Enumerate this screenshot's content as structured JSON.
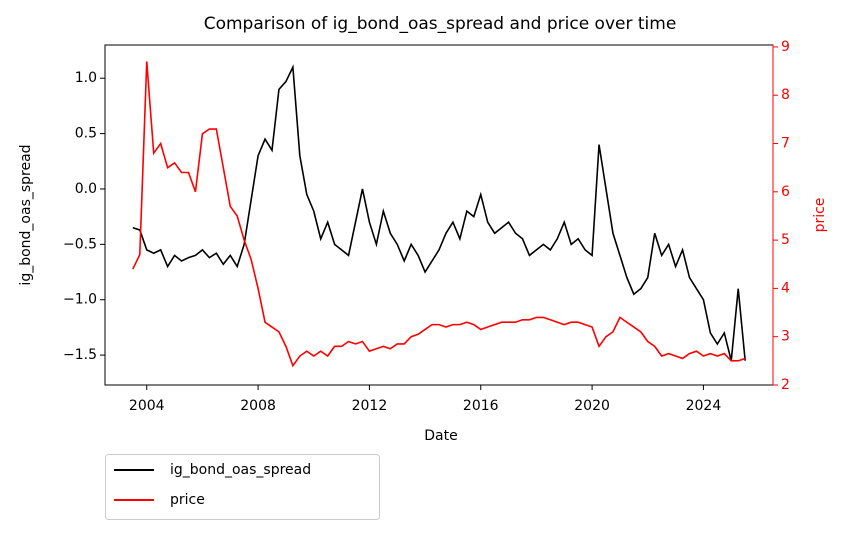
{
  "chart_data": {
    "type": "line",
    "title": "Comparison of ig_bond_oas_spread and price over time",
    "xlabel": "Date",
    "ylabel": "ig_bond_oas_spread",
    "y2label": "price",
    "x": [
      2003.5,
      2003.75,
      2004,
      2004.25,
      2004.5,
      2004.75,
      2005,
      2005.25,
      2005.5,
      2005.75,
      2006,
      2006.25,
      2006.5,
      2006.75,
      2007,
      2007.25,
      2007.5,
      2007.75,
      2008,
      2008.25,
      2008.5,
      2008.75,
      2009,
      2009.25,
      2009.5,
      2009.75,
      2010,
      2010.25,
      2010.5,
      2010.75,
      2011,
      2011.25,
      2011.5,
      2011.75,
      2012,
      2012.25,
      2012.5,
      2012.75,
      2013,
      2013.25,
      2013.5,
      2013.75,
      2014,
      2014.25,
      2014.5,
      2014.75,
      2015,
      2015.25,
      2015.5,
      2015.75,
      2016,
      2016.25,
      2016.5,
      2016.75,
      2017,
      2017.25,
      2017.5,
      2017.75,
      2018,
      2018.25,
      2018.5,
      2018.75,
      2019,
      2019.25,
      2019.5,
      2019.75,
      2020,
      2020.25,
      2020.5,
      2020.75,
      2021,
      2021.25,
      2021.5,
      2021.75,
      2022,
      2022.25,
      2022.5,
      2022.75,
      2023,
      2023.25,
      2023.5,
      2023.75,
      2024,
      2024.25,
      2024.5,
      2024.75,
      2025,
      2025.25,
      2025.5
    ],
    "series": [
      {
        "name": "ig_bond_oas_spread",
        "color": "#000000",
        "axis": "y",
        "values": [
          -0.35,
          -0.37,
          -0.55,
          -0.58,
          -0.55,
          -0.7,
          -0.6,
          -0.65,
          -0.62,
          -0.6,
          -0.55,
          -0.62,
          -0.58,
          -0.68,
          -0.6,
          -0.7,
          -0.5,
          -0.1,
          0.3,
          0.45,
          0.35,
          0.9,
          0.97,
          1.1,
          0.3,
          -0.05,
          -0.2,
          -0.45,
          -0.3,
          -0.5,
          -0.55,
          -0.6,
          -0.3,
          0.0,
          -0.3,
          -0.5,
          -0.2,
          -0.4,
          -0.5,
          -0.65,
          -0.5,
          -0.6,
          -0.75,
          -0.65,
          -0.55,
          -0.4,
          -0.3,
          -0.45,
          -0.2,
          -0.25,
          -0.05,
          -0.3,
          -0.4,
          -0.35,
          -0.3,
          -0.4,
          -0.45,
          -0.6,
          -0.55,
          -0.5,
          -0.55,
          -0.45,
          -0.3,
          -0.5,
          -0.45,
          -0.55,
          -0.6,
          0.4,
          0.0,
          -0.4,
          -0.6,
          -0.8,
          -0.95,
          -0.9,
          -0.8,
          -0.4,
          -0.6,
          -0.5,
          -0.7,
          -0.55,
          -0.8,
          -0.9,
          -1.0,
          -1.3,
          -1.4,
          -1.3,
          -1.55,
          -0.9,
          -1.55
        ]
      },
      {
        "name": "price",
        "color": "#ff0000",
        "axis": "y2",
        "values": [
          4.4,
          4.7,
          8.7,
          6.8,
          7.0,
          6.5,
          6.6,
          6.4,
          6.4,
          6.0,
          7.2,
          7.3,
          7.3,
          6.5,
          5.7,
          5.5,
          5.0,
          4.6,
          4.0,
          3.3,
          3.2,
          3.1,
          2.8,
          2.4,
          2.6,
          2.7,
          2.6,
          2.7,
          2.6,
          2.8,
          2.8,
          2.9,
          2.85,
          2.9,
          2.7,
          2.75,
          2.8,
          2.75,
          2.85,
          2.85,
          3.0,
          3.05,
          3.15,
          3.25,
          3.25,
          3.2,
          3.25,
          3.25,
          3.3,
          3.25,
          3.15,
          3.2,
          3.25,
          3.3,
          3.3,
          3.3,
          3.35,
          3.35,
          3.4,
          3.4,
          3.35,
          3.3,
          3.25,
          3.3,
          3.3,
          3.25,
          3.2,
          2.8,
          3.0,
          3.1,
          3.4,
          3.3,
          3.2,
          3.1,
          2.9,
          2.8,
          2.6,
          2.65,
          2.6,
          2.55,
          2.65,
          2.7,
          2.6,
          2.65,
          2.6,
          2.65,
          2.5,
          2.5,
          2.55
        ]
      }
    ],
    "xlim": [
      2002.5,
      2026.5
    ],
    "xticks": [
      2004,
      2008,
      2012,
      2016,
      2020,
      2024
    ],
    "ylim": [
      -1.77,
      1.3
    ],
    "yticks": [
      {
        "value": -1.5,
        "label": "−1.5"
      },
      {
        "value": -1.0,
        "label": "−1.0"
      },
      {
        "value": -0.5,
        "label": "−0.5"
      },
      {
        "value": 0.0,
        "label": "0.0"
      },
      {
        "value": 0.5,
        "label": "0.5"
      },
      {
        "value": 1.0,
        "label": "1.0"
      }
    ],
    "y2lim": [
      2.0,
      9.04
    ],
    "y2ticks": [
      2,
      3,
      4,
      5,
      6,
      7,
      8,
      9
    ],
    "legend": "below"
  }
}
